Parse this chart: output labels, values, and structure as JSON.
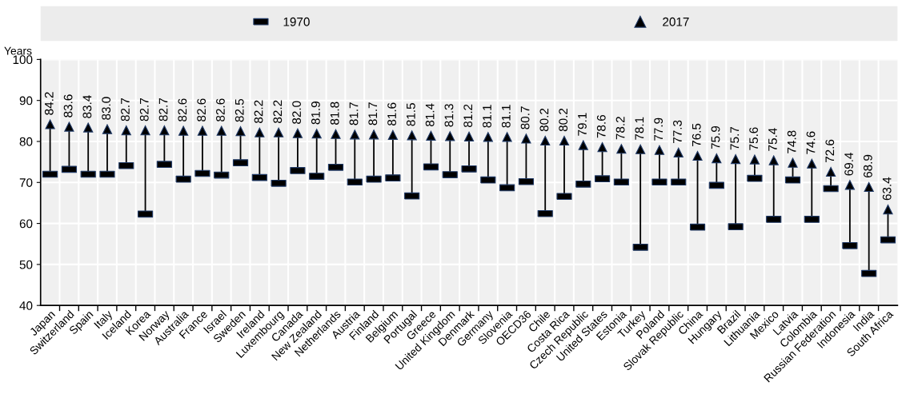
{
  "chart_data": {
    "type": "scatter",
    "ylabel": "Years",
    "categories": [
      "Japan",
      "Switzerland",
      "Spain",
      "Italy",
      "Iceland",
      "Korea",
      "Norway",
      "Australia",
      "France",
      "Israel",
      "Sweden",
      "Ireland",
      "Luxembourg",
      "Canada",
      "New Zealand",
      "Netherlands",
      "Austria",
      "Finland",
      "Belgium",
      "Portugal",
      "Greece",
      "United Kingdom",
      "Denmark",
      "Germany",
      "Slovenia",
      "OECD36",
      "Chile",
      "Costa Rica",
      "Czech Republic",
      "United States",
      "Estonia",
      "Turkey",
      "Poland",
      "Slovak Republic",
      "China",
      "Hungary",
      "Brazil",
      "Lithuania",
      "Mexico",
      "Latvia",
      "Colombia",
      "Russian Federation",
      "Indonesia",
      "India",
      "South Africa"
    ],
    "series": [
      {
        "name": "1970",
        "color": "#000000",
        "values": [
          72.0,
          73.2,
          72.0,
          72.0,
          74.1,
          62.3,
          74.4,
          70.8,
          72.2,
          71.8,
          74.8,
          71.2,
          69.8,
          72.9,
          71.5,
          73.7,
          70.1,
          70.8,
          71.1,
          66.7,
          73.8,
          71.9,
          73.3,
          70.6,
          68.7,
          70.2,
          62.4,
          66.6,
          69.6,
          70.9,
          70.1,
          54.2,
          70.1,
          70.1,
          59.1,
          69.3,
          59.2,
          71.0,
          61.0,
          70.6,
          61.0,
          68.5,
          54.6,
          47.8,
          56.0
        ]
      },
      {
        "name": "2017",
        "color": "#000000",
        "marker": "triangle",
        "values": [
          84.2,
          83.6,
          83.4,
          83.0,
          82.7,
          82.7,
          82.7,
          82.6,
          82.6,
          82.6,
          82.5,
          82.2,
          82.2,
          82.0,
          81.9,
          81.8,
          81.7,
          81.7,
          81.6,
          81.5,
          81.4,
          81.3,
          81.2,
          81.1,
          81.1,
          80.7,
          80.2,
          80.2,
          79.1,
          78.6,
          78.2,
          78.1,
          77.9,
          77.3,
          76.5,
          75.9,
          75.7,
          75.6,
          75.4,
          74.8,
          74.6,
          72.6,
          69.4,
          68.9,
          63.4
        ],
        "value_labels": [
          "84.2",
          "83.6",
          "83.4",
          "83.0",
          "82.7",
          "82.7",
          "82.7",
          "82.6",
          "82.6",
          "82.6",
          "82.5",
          "82.2",
          "82.2",
          "82.0",
          "81.9",
          "81.8",
          "81.7",
          "81.7",
          "81.6",
          "81.5",
          "81.4",
          "81.3",
          "81.2",
          "81.1",
          "81.1",
          "80.7",
          "80.2",
          "80.2",
          "79.1",
          "78.6",
          "78.2",
          "78.1",
          "77.9",
          "77.3",
          "76.5",
          "75.9",
          "75.7",
          "75.6",
          "75.4",
          "74.8",
          "74.6",
          "72.6",
          "69.4",
          "68.9",
          "63.4"
        ]
      }
    ],
    "ylim": [
      40,
      100
    ],
    "yticks": [
      40,
      50,
      60,
      70,
      80,
      90,
      100
    ],
    "grid": true,
    "legend": "top"
  }
}
